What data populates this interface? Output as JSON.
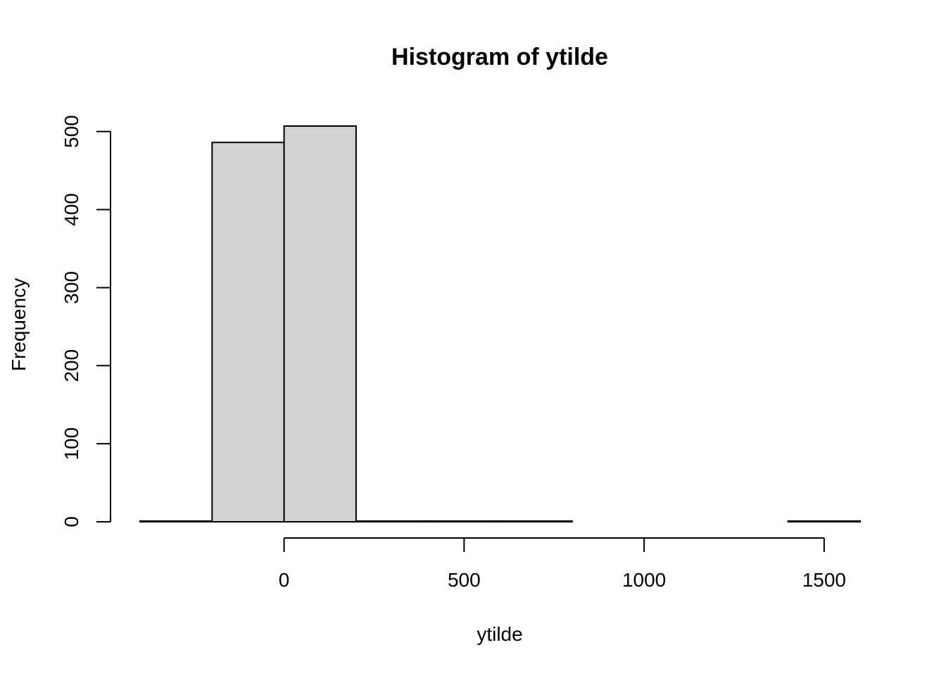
{
  "chart_data": {
    "type": "bar",
    "title": "Histogram of ytilde",
    "xlabel": "ytilde",
    "ylabel": "Frequency",
    "bins": [
      {
        "start": -400,
        "end": -200,
        "count": 1
      },
      {
        "start": -200,
        "end": 0,
        "count": 486
      },
      {
        "start": 0,
        "end": 200,
        "count": 507
      },
      {
        "start": 200,
        "end": 400,
        "count": 1
      },
      {
        "start": 400,
        "end": 600,
        "count": 1
      },
      {
        "start": 600,
        "end": 800,
        "count": 1
      },
      {
        "start": 800,
        "end": 1000,
        "count": 0
      },
      {
        "start": 1000,
        "end": 1200,
        "count": 0
      },
      {
        "start": 1200,
        "end": 1400,
        "count": 0
      },
      {
        "start": 1400,
        "end": 1600,
        "count": 1
      }
    ],
    "x_ticks": [
      0,
      500,
      1000,
      1500
    ],
    "y_ticks": [
      0,
      100,
      200,
      300,
      400,
      500
    ],
    "xlim": [
      -400,
      1600
    ],
    "ylim": [
      0,
      507
    ],
    "bar_fill": "#d3d3d3",
    "bar_stroke": "#000000",
    "grid": false
  }
}
